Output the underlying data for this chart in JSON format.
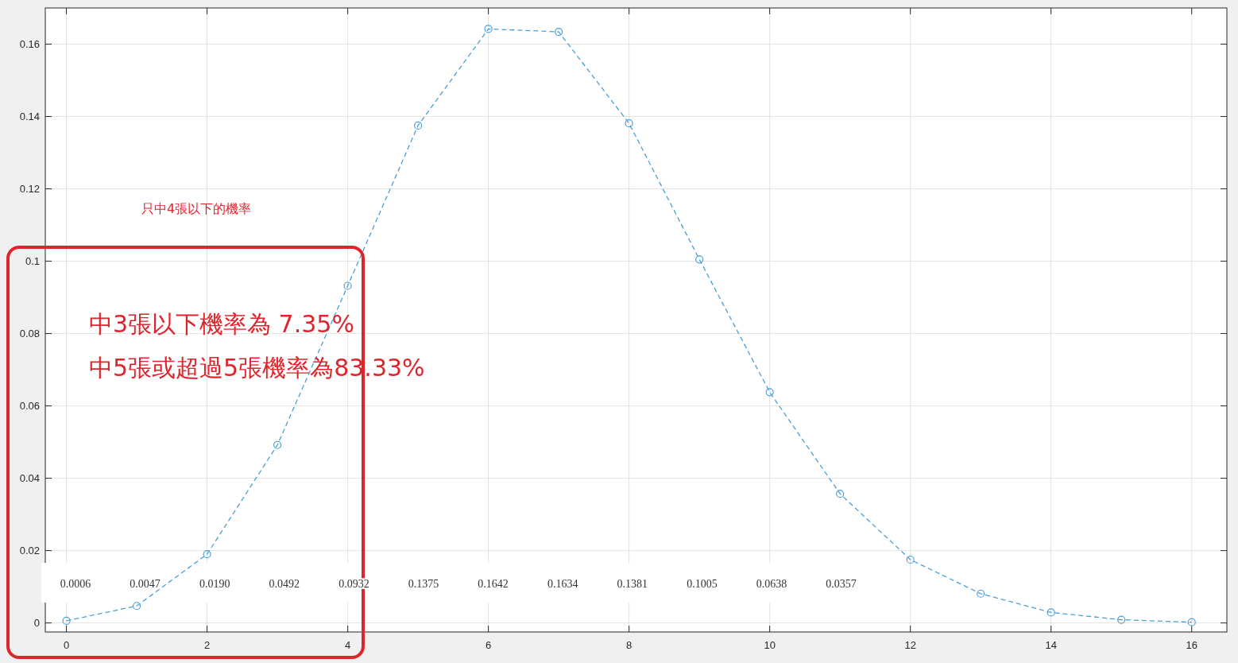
{
  "chart_data": {
    "type": "line",
    "x": [
      0,
      1,
      2,
      3,
      4,
      5,
      6,
      7,
      8,
      9,
      10,
      11,
      12,
      13,
      14,
      15,
      16
    ],
    "series": [
      {
        "color": "#4a9fd8",
        "values": [
          0.0006,
          0.0047,
          0.019,
          0.0492,
          0.0932,
          0.1375,
          0.1642,
          0.1634,
          0.1381,
          0.1005,
          0.0638,
          0.0357,
          0.0175,
          0.0081,
          0.0029,
          0.0009,
          0.0002
        ]
      }
    ],
    "xlim": [
      -0.3,
      16.5
    ],
    "ylim": [
      -0.0025,
      0.17
    ],
    "xticks": [
      0,
      2,
      4,
      6,
      8,
      10,
      12,
      14,
      16
    ],
    "yticks": [
      0,
      0.02,
      0.04,
      0.06,
      0.08,
      0.1,
      0.12,
      0.14,
      0.16
    ],
    "grid": true,
    "marker": "circle",
    "line_style": "dashed",
    "annotations": [
      "只中4張以下的機率",
      "中3張以下機率為 7.35%",
      "中5張或超過5張機率為83.33%",
      "0.0006",
      "0.0047",
      "0.0190",
      "0.0492",
      "0.0932",
      "0.1375",
      "0.1642",
      "0.1634",
      "0.1381",
      "0.1005",
      "0.0638",
      "0.0357"
    ]
  }
}
